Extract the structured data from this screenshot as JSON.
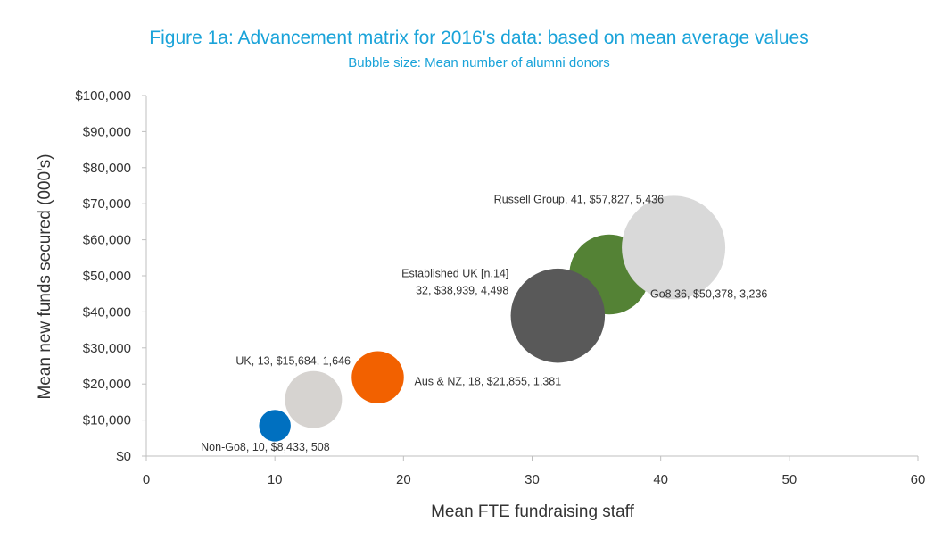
{
  "chart_data": {
    "type": "bubble",
    "title": "Figure 1a: Advancement matrix for 2016's data: based on mean average values",
    "subtitle": "Bubble size: Mean number of alumni donors",
    "xlabel": "Mean FTE fundraising staff",
    "ylabel": "Mean new funds secured (000's)",
    "xlim": [
      0,
      60
    ],
    "ylim": [
      0,
      100000
    ],
    "x_ticks": [
      {
        "value": 0,
        "label": "0"
      },
      {
        "value": 10,
        "label": "10"
      },
      {
        "value": 20,
        "label": "20"
      },
      {
        "value": 30,
        "label": "30"
      },
      {
        "value": 40,
        "label": "40"
      },
      {
        "value": 50,
        "label": "50"
      },
      {
        "value": 60,
        "label": "60"
      }
    ],
    "y_ticks": [
      {
        "value": 0,
        "label": "$0"
      },
      {
        "value": 10000,
        "label": "$10,000"
      },
      {
        "value": 20000,
        "label": "$20,000"
      },
      {
        "value": 30000,
        "label": "$30,000"
      },
      {
        "value": 40000,
        "label": "$40,000"
      },
      {
        "value": 50000,
        "label": "$50,000"
      },
      {
        "value": 60000,
        "label": "$60,000"
      },
      {
        "value": 70000,
        "label": "$70,000"
      },
      {
        "value": 80000,
        "label": "$80,000"
      },
      {
        "value": 90000,
        "label": "$90,000"
      },
      {
        "value": 100000,
        "label": "$100,000"
      }
    ],
    "grid": false,
    "legend": "none",
    "series": [
      {
        "key": "russell",
        "x": 41,
        "y": 57827,
        "size": 5436,
        "color": "#d9d9d9",
        "label_lines": [
          "Russell Group, 41, $57,827, 5,436"
        ]
      },
      {
        "key": "go8",
        "x": 36,
        "y": 50378,
        "size": 3236,
        "color": "#548235",
        "label_lines": [
          "Go8 36, $50,378, 3,236"
        ]
      },
      {
        "key": "established-uk",
        "x": 32,
        "y": 38939,
        "size": 4498,
        "color": "#595959",
        "label_lines": [
          "Established UK [n.14]",
          "32, $38,939, 4,498"
        ]
      },
      {
        "key": "aus-nz",
        "x": 18,
        "y": 21855,
        "size": 1381,
        "color": "#f26100",
        "label_lines": [
          "Aus & NZ, 18, $21,855, 1,381"
        ]
      },
      {
        "key": "uk",
        "x": 13,
        "y": 15684,
        "size": 1646,
        "color": "#d6d3d0",
        "label_lines": [
          "UK, 13, $15,684, 1,646"
        ]
      },
      {
        "key": "non-go8",
        "x": 10,
        "y": 8433,
        "size": 508,
        "color": "#0070c0",
        "label_lines": [
          "Non-Go8, 10, $8,433, 508"
        ]
      }
    ]
  }
}
